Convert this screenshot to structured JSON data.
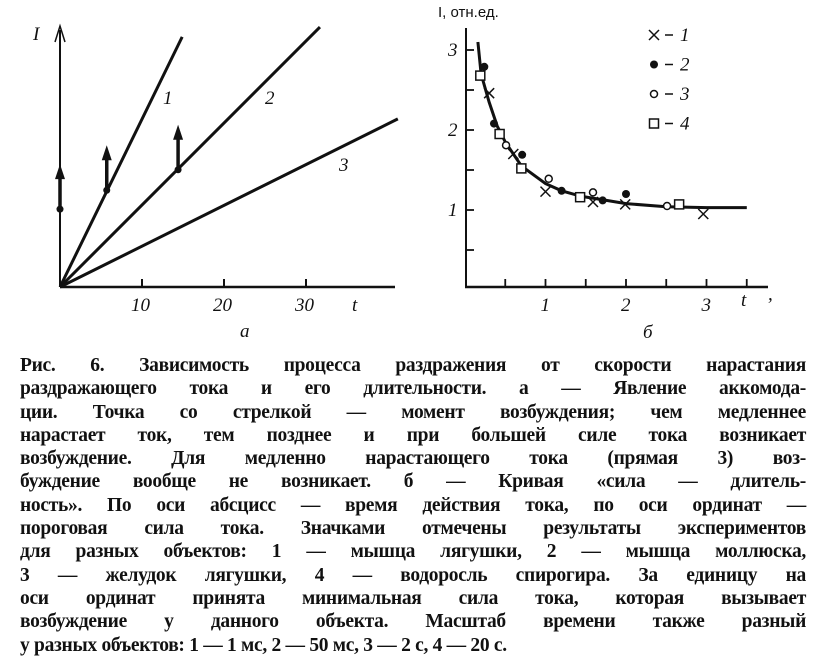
{
  "chart_data": [
    {
      "type": "line",
      "panel_label": "а",
      "xlabel": "t",
      "ylabel": "I",
      "x_ticks": [
        10,
        20,
        30
      ],
      "xlim": [
        0,
        41
      ],
      "lines": [
        {
          "label": "1",
          "points": [
            [
              0,
              0
            ],
            [
              14.9,
              30.5
            ]
          ]
        },
        {
          "label": "2",
          "points": [
            [
              0,
              0
            ],
            [
              31.7,
              31.7
            ]
          ]
        },
        {
          "label": "3",
          "points": [
            [
              0,
              0
            ],
            [
              41.2,
              20.5
            ]
          ]
        }
      ],
      "excitation_points": [
        [
          0,
          9.5
        ],
        [
          5.7,
          11.8
        ],
        [
          14.4,
          14.3
        ]
      ]
    },
    {
      "type": "scatter",
      "panel_label": "б",
      "xlabel": "t",
      "ylabel": "I, отн.ед.",
      "x_ticks": [
        1,
        2,
        3
      ],
      "y_ticks": [
        1,
        2,
        3
      ],
      "xlim": [
        0,
        3.7
      ],
      "ylim": [
        0,
        3.2
      ],
      "legend_placement": "top-right",
      "series": [
        {
          "name": "1",
          "marker": "cross",
          "points": [
            [
              0.3,
              2.46
            ],
            [
              0.6,
              1.7
            ],
            [
              1.0,
              1.23
            ],
            [
              1.59,
              1.1
            ],
            [
              1.99,
              1.07
            ],
            [
              2.96,
              0.95
            ]
          ]
        },
        {
          "name": "2",
          "marker": "filled-circle",
          "points": [
            [
              0.24,
              2.79
            ],
            [
              0.36,
              2.08
            ],
            [
              0.71,
              1.69
            ],
            [
              1.2,
              1.24
            ],
            [
              1.71,
              1.12
            ],
            [
              2.0,
              1.2
            ]
          ]
        },
        {
          "name": "3",
          "marker": "open-circle",
          "points": [
            [
              0.51,
              1.81
            ],
            [
              1.04,
              1.39
            ],
            [
              1.59,
              1.22
            ],
            [
              2.51,
              1.05
            ]
          ]
        },
        {
          "name": "4",
          "marker": "open-square",
          "points": [
            [
              0.19,
              2.68
            ],
            [
              0.43,
              1.95
            ],
            [
              0.7,
              1.52
            ],
            [
              1.43,
              1.16
            ],
            [
              2.66,
              1.07
            ]
          ]
        }
      ],
      "curve": [
        [
          0.16,
          3.1
        ],
        [
          0.2,
          2.7
        ],
        [
          0.3,
          2.35
        ],
        [
          0.4,
          2.05
        ],
        [
          0.5,
          1.85
        ],
        [
          0.7,
          1.55
        ],
        [
          1.0,
          1.33
        ],
        [
          1.2,
          1.24
        ],
        [
          1.45,
          1.17
        ],
        [
          1.7,
          1.13
        ],
        [
          2.0,
          1.08
        ],
        [
          2.5,
          1.04
        ],
        [
          3.0,
          1.03
        ],
        [
          3.5,
          1.03
        ]
      ]
    }
  ],
  "caption": [
    "Рис. 6. Зависимость процесса раздражения от скорости нарастания",
    "раздражающего тока и его длительности. а — Явление аккомода-",
    "ции. Точка со стрелкой — момент возбуждения; чем медленнее",
    "нарастает ток, тем позднее и при большей силе тока возникает",
    "возбуждение. Для медленно нарастающего тока (прямая 3) воз-",
    "буждение вообще не возникает. б — Кривая «сила — длитель-",
    "ность». По оси абсцисс — время действия тока, по оси ординат —",
    "пороговая сила тока. Значками отмечены результаты экспериментов",
    "для разных объектов: 1 — мышца лягушки, 2 — мышца моллюска,",
    "3 — желудок лягушки, 4 — водоросль спирогира. За единицу на",
    "оси ординат принята минимальная сила тока, которая вызывает",
    "возбуждение у данного объекта. Масштаб времени также разный",
    "у разных объектов: 1 — 1 мс, 2 — 50 мс, 3 — 2 с, 4 — 20 с."
  ]
}
